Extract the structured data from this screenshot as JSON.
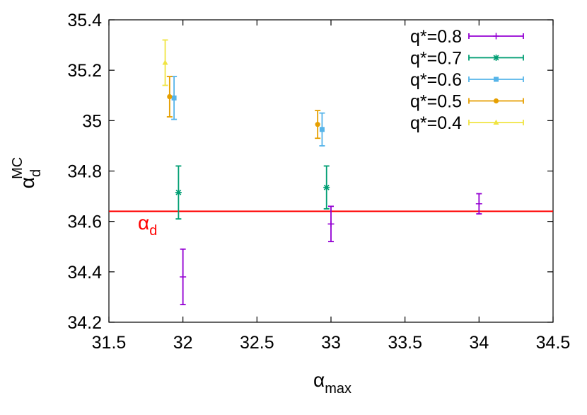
{
  "chart_data": {
    "type": "scatter",
    "title": "",
    "xlabel": {
      "symbol": "α",
      "subscript": "max"
    },
    "ylabel": {
      "symbol": "α",
      "subscript": "d",
      "superscript": "MC"
    },
    "xlim": [
      31.5,
      34.5
    ],
    "ylim": [
      34.2,
      35.4
    ],
    "xticks": [
      "31.5",
      "32",
      "32.5",
      "33",
      "33.5",
      "34",
      "34.5"
    ],
    "yticks": [
      "34.2",
      "34.4",
      "34.6",
      "34.8",
      "35",
      "35.2",
      "35.4"
    ],
    "grid": false,
    "legend_position": "top-right",
    "series": [
      {
        "name": "q*=0.8",
        "color": "#9400d3",
        "marker": "plus",
        "points": [
          {
            "x": 32.0,
            "y": 34.38,
            "err": 0.11
          },
          {
            "x": 33.0,
            "y": 34.59,
            "err": 0.07
          },
          {
            "x": 34.0,
            "y": 34.67,
            "err": 0.04
          }
        ]
      },
      {
        "name": "q*=0.7",
        "color": "#009e73",
        "marker": "star",
        "points": [
          {
            "x": 31.97,
            "y": 34.715,
            "err": 0.105
          },
          {
            "x": 32.97,
            "y": 34.735,
            "err": 0.085
          }
        ]
      },
      {
        "name": "q*=0.6",
        "color": "#56b4e9",
        "marker": "square",
        "points": [
          {
            "x": 31.94,
            "y": 35.09,
            "err": 0.085
          },
          {
            "x": 32.94,
            "y": 34.965,
            "err": 0.065
          }
        ]
      },
      {
        "name": "q*=0.5",
        "color": "#e69f00",
        "marker": "circle",
        "points": [
          {
            "x": 31.91,
            "y": 35.095,
            "err": 0.08
          },
          {
            "x": 32.91,
            "y": 34.985,
            "err": 0.055
          }
        ]
      },
      {
        "name": "q*=0.4",
        "color": "#f0e442",
        "marker": "triangle",
        "points": [
          {
            "x": 31.88,
            "y": 35.23,
            "err": 0.09
          }
        ]
      }
    ],
    "reference_line": {
      "y": 34.64,
      "color": "#ff0000",
      "label": {
        "symbol": "α",
        "subscript": "d"
      }
    }
  }
}
